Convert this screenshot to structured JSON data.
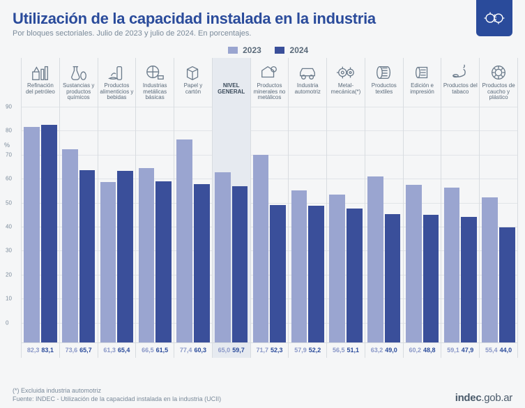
{
  "title": "Utilización de la capacidad instalada en la industria",
  "subtitle": "Por bloques sectoriales. Julio de 2023 y julio de 2024. En porcentajes.",
  "legend": {
    "y2023": "2023",
    "y2024": "2024"
  },
  "colors": {
    "bar2023": "#9aa5d0",
    "bar2024": "#3a4f9a",
    "highlight_bg": "#e6eaf0",
    "grid": "#e1e4e8",
    "border": "#d8dce0"
  },
  "chart": {
    "type": "bar",
    "ylim": [
      0,
      90
    ],
    "ytick_step": 10,
    "ylabel": "%",
    "bar_width": 0.88,
    "gap": 2
  },
  "categories": [
    {
      "label": "Refinación del petróleo",
      "icon": "refinery",
      "v2023": 82.3,
      "v2024": 83.1,
      "highlight": false
    },
    {
      "label": "Sustancias y productos químicos",
      "icon": "chemistry",
      "v2023": 73.6,
      "v2024": 65.7,
      "highlight": false
    },
    {
      "label": "Productos alimenticios y bebidas",
      "icon": "food",
      "v2023": 61.3,
      "v2024": 65.4,
      "highlight": false
    },
    {
      "label": "Industrias metálicas básicas",
      "icon": "metal",
      "v2023": 66.5,
      "v2024": 61.5,
      "highlight": false
    },
    {
      "label": "Papel y cartón",
      "icon": "paper",
      "v2023": 77.4,
      "v2024": 60.3,
      "highlight": false
    },
    {
      "label": "NIVEL GENERAL",
      "icon": "",
      "v2023": 65.0,
      "v2024": 59.7,
      "highlight": true
    },
    {
      "label": "Productos minerales no metálicos",
      "icon": "mineral",
      "v2023": 71.7,
      "v2024": 52.3,
      "highlight": false
    },
    {
      "label": "Industria automotriz",
      "icon": "auto",
      "v2023": 57.9,
      "v2024": 52.2,
      "highlight": false
    },
    {
      "label": "Metal-mecánica(*)",
      "icon": "mech",
      "v2023": 56.5,
      "v2024": 51.1,
      "highlight": false
    },
    {
      "label": "Productos textiles",
      "icon": "textile",
      "v2023": 63.2,
      "v2024": 49.0,
      "highlight": false
    },
    {
      "label": "Edición e impresión",
      "icon": "print",
      "v2023": 60.2,
      "v2024": 48.8,
      "highlight": false
    },
    {
      "label": "Productos del tabaco",
      "icon": "tobacco",
      "v2023": 59.1,
      "v2024": 47.9,
      "highlight": false
    },
    {
      "label": "Productos de caucho y plástico",
      "icon": "rubber",
      "v2023": 55.4,
      "v2024": 44.0,
      "highlight": false
    }
  ],
  "footnote": "(*) Excluida industria automotriz",
  "source": "Fuente: INDEC - Utilización de la capacidad instalada en la industria (UCII)",
  "brand": "indec.gob.ar",
  "icons_stroke": "#6a7a8a"
}
